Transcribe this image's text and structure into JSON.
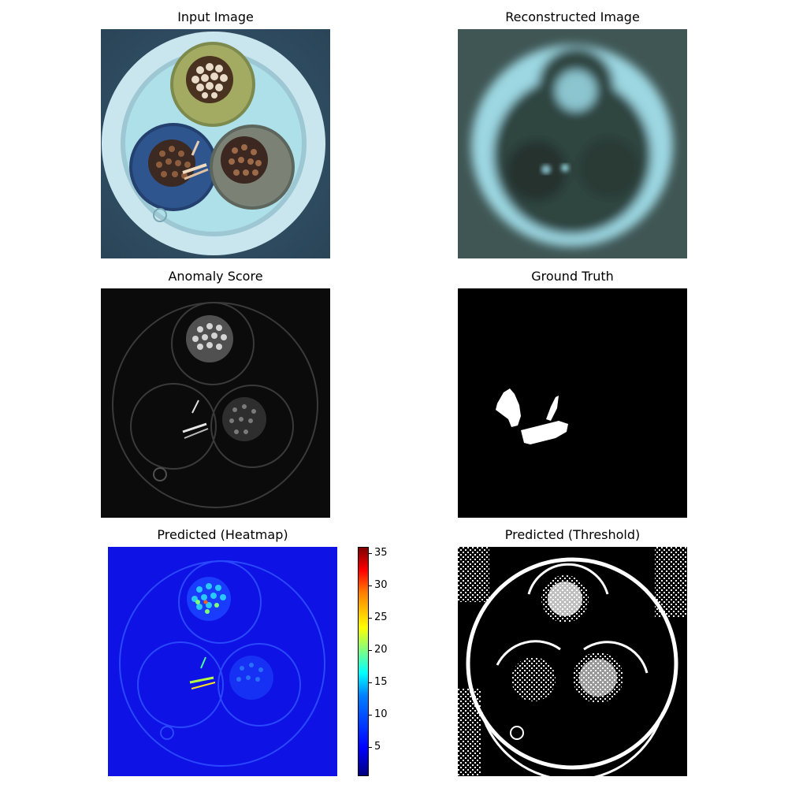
{
  "panels": {
    "input": {
      "title": "Input Image"
    },
    "reconstructed": {
      "title": "Reconstructed Image"
    },
    "anomaly": {
      "title": "Anomaly Score"
    },
    "ground_truth": {
      "title": "Ground Truth"
    },
    "heatmap": {
      "title": "Predicted (Heatmap)"
    },
    "threshold": {
      "title": "Predicted (Threshold)"
    }
  },
  "colorbar": {
    "ticks": [
      "5",
      "10",
      "15",
      "20",
      "25",
      "30",
      "35"
    ],
    "min": 0.5,
    "max": 36,
    "colormap": "jet"
  }
}
